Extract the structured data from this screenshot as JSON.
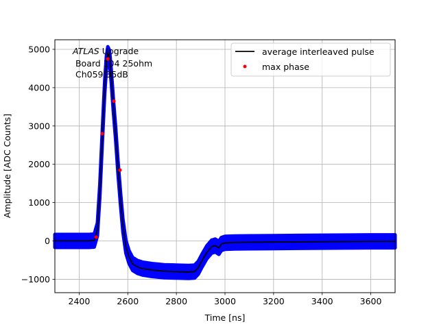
{
  "chart_data": {
    "type": "line",
    "xlabel": "Time [ns]",
    "ylabel": "Amplitude [ADC Counts]",
    "xlim": [
      2300,
      3700
    ],
    "ylim": [
      -1350,
      5250
    ],
    "xticks": [
      2400,
      2600,
      2800,
      3000,
      3200,
      3400,
      3600
    ],
    "yticks": [
      -1000,
      0,
      1000,
      2000,
      3000,
      4000,
      5000
    ],
    "grid": true,
    "legend_position": "top-right",
    "annotation": {
      "line1_italic": "ATLAS",
      "line1_rest": " Upgrade",
      "line2": " Board 104 25ohm",
      "line3": " Ch059 35dB"
    },
    "series": [
      {
        "name": "average interleaved pulse",
        "color": "#000000",
        "style": "line",
        "x": [
          2300,
          2440,
          2462,
          2475,
          2485,
          2495,
          2505,
          2512,
          2518,
          2525,
          2532,
          2540,
          2550,
          2560,
          2570,
          2580,
          2592,
          2605,
          2620,
          2640,
          2660,
          2700,
          2750,
          2800,
          2850,
          2875,
          2890,
          2905,
          2925,
          2945,
          2960,
          2975,
          2985,
          3000,
          3040,
          3100,
          3200,
          3300,
          3400,
          3500,
          3600,
          3700
        ],
        "y": [
          0,
          0,
          10,
          300,
          1300,
          2700,
          4000,
          4650,
          4900,
          4800,
          4300,
          3600,
          2800,
          1900,
          1100,
          400,
          -150,
          -420,
          -600,
          -680,
          -720,
          -760,
          -790,
          -800,
          -810,
          -800,
          -700,
          -520,
          -300,
          -150,
          -120,
          -180,
          -80,
          -50,
          -40,
          -35,
          -30,
          -25,
          -20,
          -15,
          -10,
          -10
        ]
      },
      {
        "name": "max phase",
        "color": "#ff0000",
        "style": "points",
        "x": [
          2470,
          2495,
          2518,
          2543,
          2568
        ],
        "y": [
          100,
          2800,
          4750,
          3650,
          1850
        ]
      }
    ],
    "scatter_band_color": "#0000ff",
    "scatter_band_halfwidth": 170
  }
}
